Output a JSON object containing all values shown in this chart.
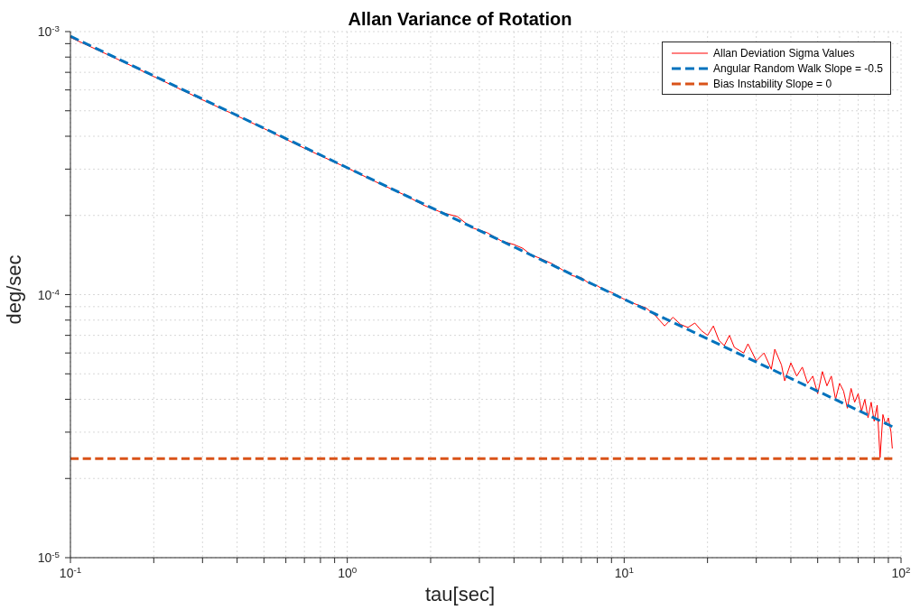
{
  "chart_data": {
    "type": "line",
    "title": "Allan Variance of Rotation",
    "xlabel": "tau[sec]",
    "ylabel": "deg/sec",
    "log": "xy",
    "grid": true,
    "legend": "top right",
    "xlim": [
      0.1,
      100
    ],
    "ylim": [
      1e-05,
      0.001
    ],
    "xticks": [
      {
        "value": 0.1,
        "label": "10$^{-1}$"
      },
      {
        "value": 0.2,
        "label": null
      },
      {
        "value": 0.3,
        "label": null
      },
      {
        "value": 0.4,
        "label": null
      },
      {
        "value": 0.5,
        "label": null
      },
      {
        "value": 0.6,
        "label": null
      },
      {
        "value": 0.7,
        "label": null
      },
      {
        "value": 0.8,
        "label": null
      },
      {
        "value": 0.9,
        "label": null
      },
      {
        "value": 1,
        "label": "10$^{0}$"
      },
      {
        "value": 2,
        "label": null
      },
      {
        "value": 3,
        "label": null
      },
      {
        "value": 4,
        "label": null
      },
      {
        "value": 5,
        "label": null
      },
      {
        "value": 6,
        "label": null
      },
      {
        "value": 7,
        "label": null
      },
      {
        "value": 8,
        "label": null
      },
      {
        "value": 9,
        "label": null
      },
      {
        "value": 10,
        "label": "10$^{1}$"
      },
      {
        "value": 20,
        "label": null
      },
      {
        "value": 30,
        "label": null
      },
      {
        "value": 40,
        "label": null
      },
      {
        "value": 50,
        "label": null
      },
      {
        "value": 60,
        "label": null
      },
      {
        "value": 70,
        "label": null
      },
      {
        "value": 80,
        "label": null
      },
      {
        "value": 90,
        "label": null
      },
      {
        "value": 100,
        "label": "10$^{2}$"
      }
    ],
    "yticks": [
      {
        "value": 1e-05,
        "label": "10$^{-5}$"
      },
      {
        "value": 2e-05,
        "label": null
      },
      {
        "value": 3e-05,
        "label": null
      },
      {
        "value": 4e-05,
        "label": null
      },
      {
        "value": 5e-05,
        "label": null
      },
      {
        "value": 6e-05,
        "label": null
      },
      {
        "value": 7e-05,
        "label": null
      },
      {
        "value": 8e-05,
        "label": null
      },
      {
        "value": 9e-05,
        "label": null
      },
      {
        "value": 0.0001,
        "label": "10$^{-4}$"
      },
      {
        "value": 0.0002,
        "label": null
      },
      {
        "value": 0.0003,
        "label": null
      },
      {
        "value": 0.0004,
        "label": null
      },
      {
        "value": 0.0005,
        "label": null
      },
      {
        "value": 0.0006,
        "label": null
      },
      {
        "value": 0.0007,
        "label": null
      },
      {
        "value": 0.0008,
        "label": null
      },
      {
        "value": 0.0009,
        "label": null
      },
      {
        "value": 0.001,
        "label": "10$^{-3}$"
      }
    ],
    "series": [
      {
        "name": "Allan Deviation Sigma Values",
        "color": "#ff0000",
        "line_style": "solid",
        "x": [
          0.1,
          0.15,
          0.2,
          0.3,
          0.4,
          0.5,
          0.7,
          1.0,
          1.3,
          1.6,
          1.9,
          2.2,
          2.5,
          2.8,
          3.2,
          3.6,
          4.0,
          4.3,
          4.6,
          5,
          5.5,
          6,
          6.5,
          7,
          7.5,
          8,
          8.5,
          9,
          10,
          11,
          12,
          13,
          14,
          15,
          16,
          17,
          18,
          19,
          20,
          21,
          22,
          23,
          24,
          25,
          27,
          28,
          30,
          32,
          34,
          35,
          37,
          38,
          40,
          42,
          44,
          46,
          48,
          50,
          52,
          54,
          56,
          58,
          60,
          62,
          64,
          66,
          68,
          70,
          72,
          74,
          76,
          78,
          80,
          82,
          84,
          86,
          88,
          90,
          92,
          93
        ],
        "values": [
          0.00095,
          0.00078,
          0.000675,
          0.00055,
          0.000478,
          0.000428,
          0.00036,
          0.000303,
          0.000265,
          0.00024,
          0.000218,
          0.000205,
          0.000198,
          0.00018,
          0.000172,
          0.00016,
          0.000155,
          0.00015,
          0.000142,
          0.000137,
          0.000131,
          0.000124,
          0.000118,
          0.000116,
          0.00011,
          0.000108,
          0.000104,
          0.000102,
          9.6e-05,
          9.2e-05,
          8.9e-05,
          8.3e-05,
          7.6e-05,
          8.2e-05,
          7.7e-05,
          7.5e-05,
          7.8e-05,
          7.3e-05,
          7e-05,
          7.6e-05,
          6.7e-05,
          6.4e-05,
          7e-05,
          6.3e-05,
          6e-05,
          6.5e-05,
          5.6e-05,
          6e-05,
          5.2e-05,
          6.2e-05,
          5.4e-05,
          4.7e-05,
          5.5e-05,
          4.9e-05,
          5.3e-05,
          4.6e-05,
          4.9e-05,
          4.2e-05,
          5.1e-05,
          4.5e-05,
          4.9e-05,
          4e-05,
          4.6e-05,
          4.3e-05,
          3.7e-05,
          4.4e-05,
          3.9e-05,
          4.2e-05,
          3.6e-05,
          4e-05,
          3.4e-05,
          3.9e-05,
          3.3e-05,
          3.8e-05,
          2.4e-05,
          3.5e-05,
          3.2e-05,
          3.4e-05,
          3e-05,
          2.6e-05
        ]
      },
      {
        "name": "Angular Random Walk Slope = -0.5",
        "color": "#0072bd",
        "line_style": "dashed",
        "x": [
          0.1,
          93
        ],
        "values": [
          0.00096,
          3.15e-05
        ]
      },
      {
        "name": "Bias Instability Slope = 0",
        "color": "#d95319",
        "line_style": "dashed",
        "x": [
          0.1,
          93
        ],
        "values": [
          2.38e-05,
          2.38e-05
        ]
      }
    ]
  }
}
